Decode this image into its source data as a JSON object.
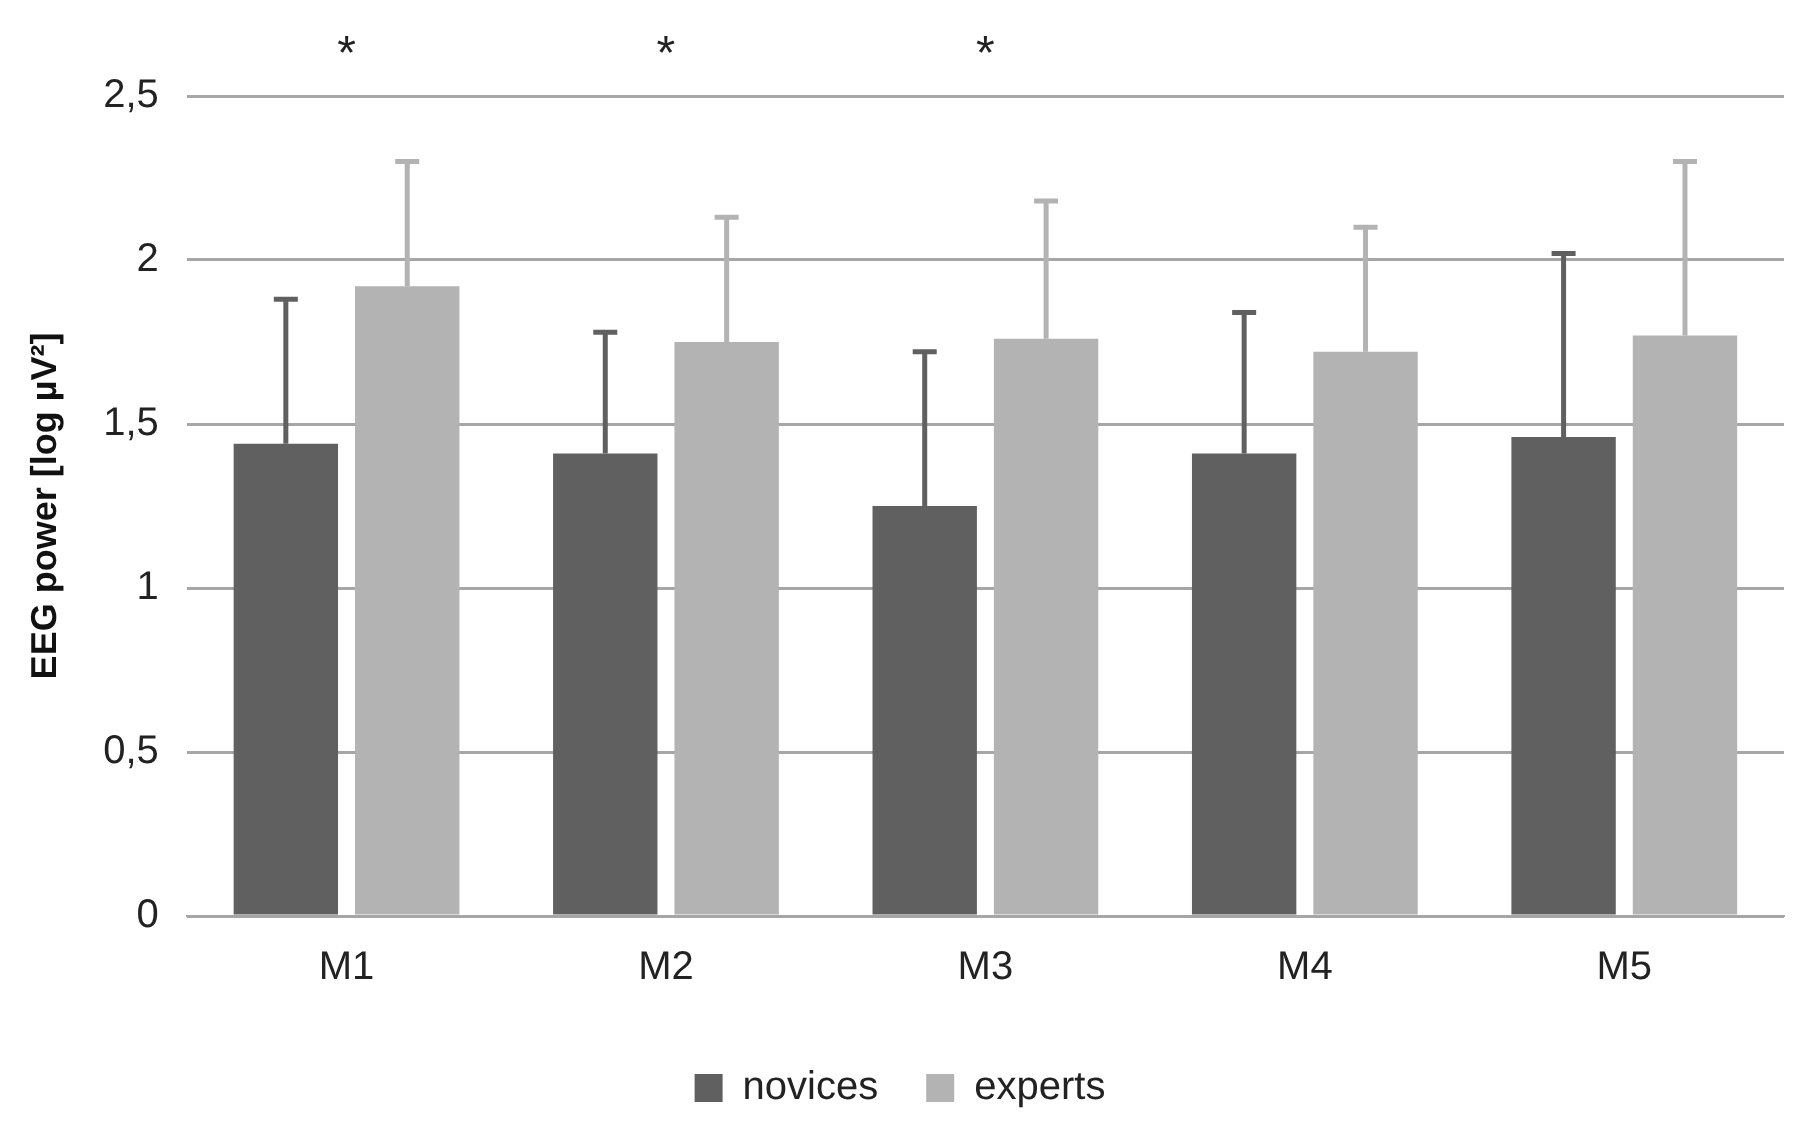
{
  "chart_data": {
    "type": "bar",
    "ylabel": "EEG power [log µV²]",
    "categories": [
      "M1",
      "M2",
      "M3",
      "M4",
      "M5"
    ],
    "series": [
      {
        "name": "novices",
        "color": "#606060",
        "values": [
          1.44,
          1.41,
          1.25,
          1.41,
          1.46
        ],
        "errors": [
          [
            1.44,
            1.88
          ],
          [
            1.41,
            1.78
          ],
          [
            1.25,
            1.72
          ],
          [
            1.41,
            1.84
          ],
          [
            1.46,
            2.02
          ]
        ]
      },
      {
        "name": "experts",
        "color": "#b3b3b3",
        "values": [
          1.92,
          1.75,
          1.76,
          1.72,
          1.77
        ],
        "errors": [
          [
            1.92,
            2.3
          ],
          [
            1.75,
            2.13
          ],
          [
            1.76,
            2.18
          ],
          [
            1.72,
            2.1
          ],
          [
            1.77,
            2.3
          ]
        ]
      }
    ],
    "ylim": [
      0,
      2.5
    ],
    "yticks": [
      0,
      {
        "value": 0.5,
        "label": "0,5"
      },
      1,
      {
        "value": 1.5,
        "label": "1,5"
      },
      2,
      {
        "value": 2.5,
        "label": "2,5"
      }
    ],
    "grid": "y",
    "legend": "bottom",
    "annotations": [
      "*",
      "*",
      "*"
    ]
  }
}
